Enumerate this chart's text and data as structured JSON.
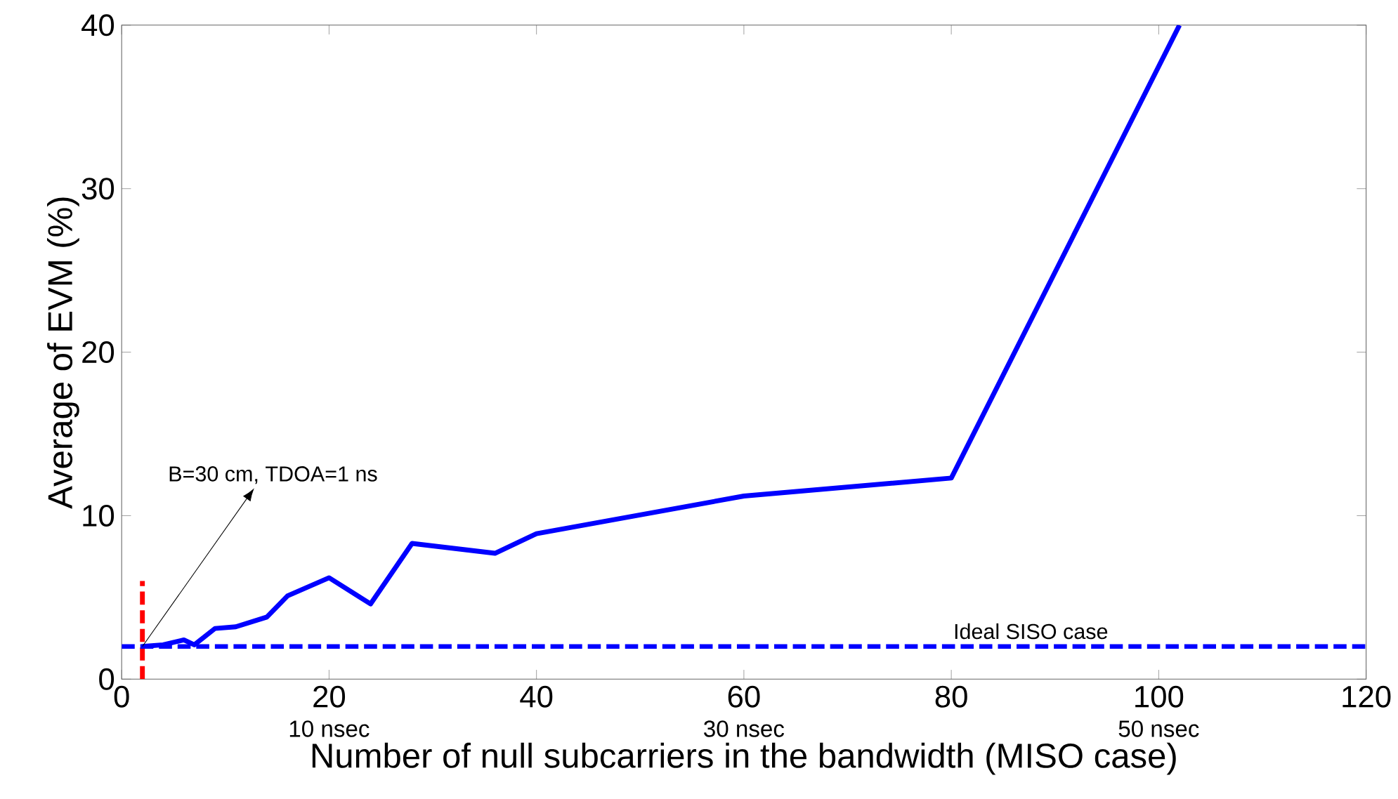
{
  "chart_data": {
    "type": "line",
    "xlabel": "Number of null subcarriers in the bandwidth (MISO case)",
    "ylabel": "Average of EVM (%)",
    "xlim": [
      0,
      120
    ],
    "xticks": [
      0,
      20,
      40,
      60,
      80,
      100,
      120
    ],
    "ylim": [
      0,
      40
    ],
    "yticks": [
      0,
      10,
      20,
      30,
      40
    ],
    "x2lim": [
      0,
      60
    ],
    "x2ticks": [
      {
        "value": 10,
        "label": "10 nsec"
      },
      {
        "value": 30,
        "label": "30 nsec"
      },
      {
        "value": 50,
        "label": "50 nsec"
      }
    ],
    "grid": false,
    "marker": "none",
    "series": [
      {
        "color": "#0000ff",
        "line_style": "solid",
        "x": [
          2,
          4,
          6,
          7,
          9,
          11,
          14,
          16,
          20,
          24,
          28,
          36,
          40,
          60,
          80,
          102
        ],
        "values": [
          2.0,
          2.1,
          2.4,
          2.1,
          3.1,
          3.2,
          3.8,
          5.1,
          6.2,
          4.6,
          8.3,
          7.7,
          8.9,
          11.2,
          12.3,
          40
        ]
      },
      {
        "color": "#ff0000",
        "line_style": "dashed",
        "x": [
          2,
          2
        ],
        "values": [
          0,
          6
        ]
      }
    ],
    "ref_lines": [
      {
        "axis": "y",
        "value": 2,
        "label": "Ideal SISO case",
        "color": "#0000ff",
        "line_style": "dashed"
      }
    ],
    "annotations": [
      {
        "text": "B=30 cm, TDOA=1 ns",
        "x": 2,
        "y": 2
      }
    ]
  }
}
